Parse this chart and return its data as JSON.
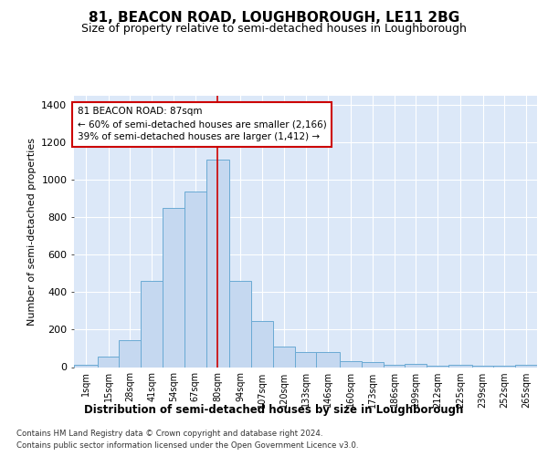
{
  "title": "81, BEACON ROAD, LOUGHBOROUGH, LE11 2BG",
  "subtitle": "Size of property relative to semi-detached houses in Loughborough",
  "xlabel": "Distribution of semi-detached houses by size in Loughborough",
  "ylabel": "Number of semi-detached properties",
  "property_size": 87,
  "annotation_line1": "81 BEACON ROAD: 87sqm",
  "annotation_line2": "← 60% of semi-detached houses are smaller (2,166)",
  "annotation_line3": "39% of semi-detached houses are larger (1,412) →",
  "footer1": "Contains HM Land Registry data © Crown copyright and database right 2024.",
  "footer2": "Contains public sector information licensed under the Open Government Licence v3.0.",
  "bar_color": "#c5d8f0",
  "bar_edge_color": "#6aaad4",
  "highlight_color": "#cc0000",
  "bg_color": "#dce8f8",
  "grid_color": "#ffffff",
  "annotation_box_color": "#ffffff",
  "annotation_box_edge": "#cc0000",
  "categories": [
    "1sqm",
    "15sqm",
    "28sqm",
    "41sqm",
    "54sqm",
    "67sqm",
    "80sqm",
    "94sqm",
    "107sqm",
    "120sqm",
    "133sqm",
    "146sqm",
    "160sqm",
    "173sqm",
    "186sqm",
    "199sqm",
    "212sqm",
    "225sqm",
    "239sqm",
    "252sqm",
    "265sqm"
  ],
  "bar_left_edges": [
    1,
    15,
    28,
    41,
    54,
    67,
    80,
    94,
    107,
    120,
    133,
    146,
    160,
    173,
    186,
    199,
    212,
    225,
    239,
    252,
    265
  ],
  "bar_widths": [
    14,
    13,
    13,
    13,
    13,
    13,
    14,
    13,
    13,
    13,
    13,
    14,
    13,
    13,
    13,
    13,
    13,
    14,
    13,
    13,
    13
  ],
  "bar_heights": [
    10,
    55,
    145,
    460,
    850,
    940,
    1110,
    460,
    245,
    110,
    80,
    80,
    30,
    25,
    10,
    15,
    5,
    10,
    5,
    5,
    10
  ],
  "ylim": [
    0,
    1450
  ],
  "yticks": [
    0,
    200,
    400,
    600,
    800,
    1000,
    1200,
    1400
  ],
  "xlim": [
    1,
    278
  ]
}
